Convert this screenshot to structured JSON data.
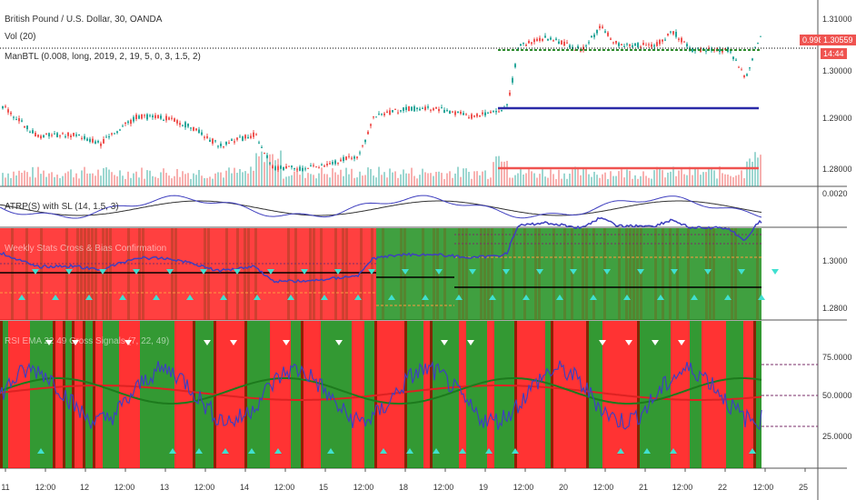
{
  "main_pane": {
    "symbol_title": "British Pound / U.S. Dollar, 30, OANDA",
    "vol_label": "Vol (20)",
    "manbtl_label": "ManBTL (0.008, long, 2019, 2, 19, 5, 0, 3, 1.5, 2)",
    "price_axis": [
      "1.31000",
      "1.30000",
      "1.29000",
      "1.28000"
    ],
    "tag_left": "0.998",
    "tag_price": "1.30559",
    "tag_time": "14:44"
  },
  "atrp_pane": {
    "label": "ATRP(S) with SL (14, 1.5, 3)",
    "axis": [
      "0.0020"
    ]
  },
  "weekly_pane": {
    "label": "Weekly Stats Cross & Bias Confirmation",
    "axis": [
      "1.3000",
      "1.2800"
    ]
  },
  "rsi_pane": {
    "label": "RSI EMA 22 49 Cross Signals (7, 22, 49)",
    "axis": [
      "75.0000",
      "50.0000",
      "25.0000"
    ]
  },
  "time_axis": [
    "11",
    "12:00",
    "12",
    "12:00",
    "13",
    "12:00",
    "14",
    "12:00",
    "15",
    "12:00",
    "18",
    "12:00",
    "19",
    "12:00",
    "20",
    "12:00",
    "21",
    "12:00",
    "22",
    "12:00",
    "25"
  ],
  "colors": {
    "bull": "#26a69a",
    "bear": "#ef5350",
    "bg_red": "#ff0000",
    "bg_green": "#008000",
    "blue_line": "#3f3fbf",
    "tag_red": "#ef5350"
  }
}
